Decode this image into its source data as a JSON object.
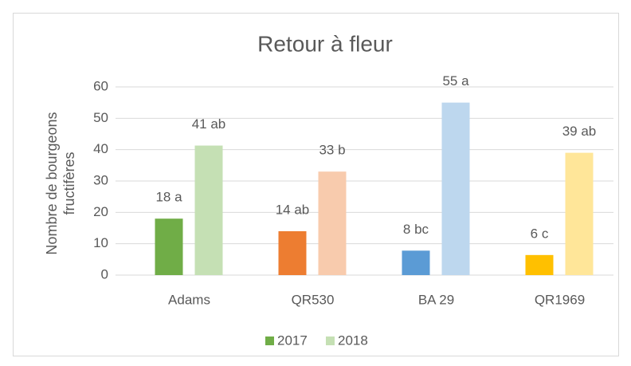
{
  "chart_data": {
    "type": "bar",
    "title": "Retour à fleur",
    "ylabel": "Nombre de bourgeons fructifères",
    "categories": [
      "Adams",
      "QR530",
      "BA 29",
      "QR1969"
    ],
    "series": [
      {
        "name": "2017",
        "color": "#70ad47",
        "colors": [
          "#70ad47",
          "#ed7d31",
          "#5b9bd5",
          "#ffc000"
        ],
        "values": [
          18,
          14,
          7.8,
          6.4
        ],
        "value_labels": [
          "18 a",
          "14 ab",
          "8 bc",
          "6 c"
        ]
      },
      {
        "name": "2018",
        "color": "#c5e0b4",
        "colors": [
          "#c5e0b4",
          "#f8cbad",
          "#bdd7ee",
          "#ffe699"
        ],
        "values": [
          41.3,
          33,
          55,
          39
        ],
        "value_labels": [
          "41 ab",
          "33 b",
          "55 a",
          "39 ab"
        ]
      }
    ],
    "ylim": [
      0,
      60
    ],
    "yticks": [
      0,
      10,
      20,
      30,
      40,
      50,
      60
    ],
    "grid": true,
    "legend": "bottom"
  }
}
